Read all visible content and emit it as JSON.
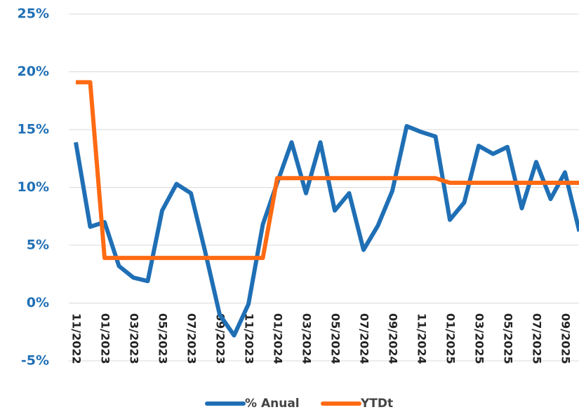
{
  "chart_data": {
    "type": "line",
    "categories": [
      "11/2022",
      null,
      "01/2023",
      null,
      "03/2023",
      null,
      "05/2023",
      null,
      "07/2023",
      null,
      "09/2023",
      null,
      "11/2023",
      null,
      "01/2024",
      null,
      "03/2024",
      null,
      "05/2024",
      null,
      "07/2024",
      null,
      "09/2024",
      null,
      "11/2024",
      null,
      "01/2025",
      null,
      "03/2025",
      null,
      "05/2025",
      null,
      "07/2025",
      null,
      "09/2025",
      null
    ],
    "series": [
      {
        "name": "% Anual",
        "color": "#1f6fb5",
        "values": [
          13.9,
          6.6,
          7.0,
          3.2,
          2.2,
          1.9,
          8.0,
          10.3,
          9.5,
          4.4,
          -1.0,
          -2.8,
          -0.1,
          6.8,
          10.4,
          13.9,
          9.5,
          13.9,
          8.0,
          9.5,
          4.6,
          6.7,
          9.7,
          15.3,
          14.8,
          14.4,
          7.2,
          8.7,
          13.6,
          12.9,
          13.5,
          8.2,
          12.2,
          9.0,
          11.3,
          6.2
        ]
      },
      {
        "name": "YTDt",
        "color": "#ff6a13",
        "values": [
          19.1,
          19.1,
          3.9,
          3.9,
          3.9,
          3.9,
          3.9,
          3.9,
          3.9,
          3.9,
          3.9,
          3.9,
          3.9,
          3.9,
          10.8,
          10.8,
          10.8,
          10.8,
          10.8,
          10.8,
          10.8,
          10.8,
          10.8,
          10.8,
          10.8,
          10.8,
          10.4,
          10.4,
          10.4,
          10.4,
          10.4,
          10.4,
          10.4,
          10.4,
          10.4,
          10.4
        ]
      }
    ],
    "ylim": [
      -5,
      25
    ],
    "yticks": [
      {
        "value": -5,
        "label": "-5%"
      },
      {
        "value": 0,
        "label": "0%"
      },
      {
        "value": 5,
        "label": "5%"
      },
      {
        "value": 10,
        "label": "10%"
      },
      {
        "value": 15,
        "label": "15%"
      },
      {
        "value": 20,
        "label": "20%"
      },
      {
        "value": 25,
        "label": "25%"
      }
    ],
    "grid": true,
    "legend": "bottom"
  }
}
